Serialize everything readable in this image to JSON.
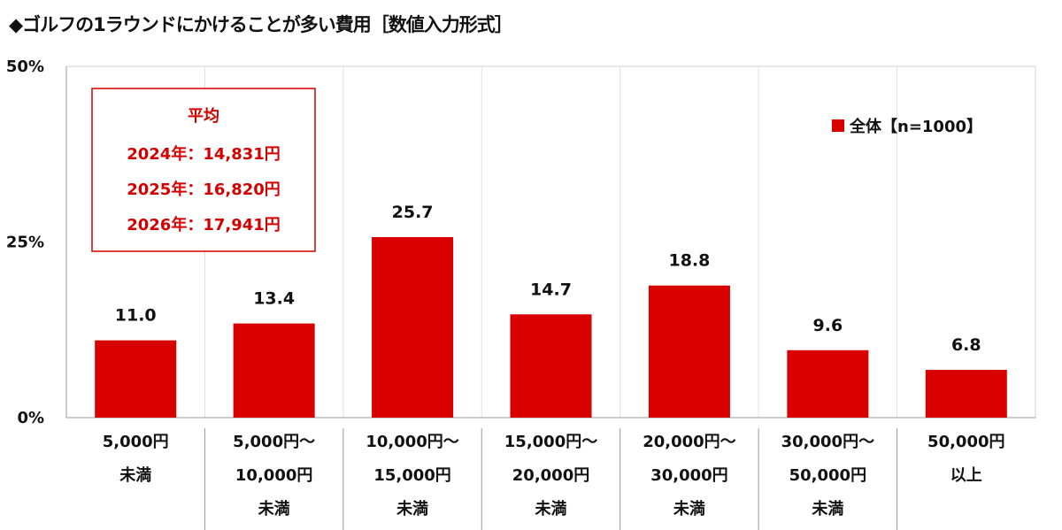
{
  "chart_data": {
    "type": "bar",
    "title": "◆ゴルフの1ラウンドにかけることが多い費用［数値入力形式］",
    "categories": [
      [
        "5,000円",
        "未満"
      ],
      [
        "5,000円～",
        "10,000円",
        "未満"
      ],
      [
        "10,000円～",
        "15,000円",
        "未満"
      ],
      [
        "15,000円～",
        "20,000円",
        "未満"
      ],
      [
        "20,000円～",
        "30,000円",
        "未満"
      ],
      [
        "30,000円～",
        "50,000円",
        "未満"
      ],
      [
        "50,000円",
        "以上"
      ]
    ],
    "series": [
      {
        "name": "全体【n=1000】",
        "values": [
          11.0,
          13.4,
          25.7,
          14.7,
          18.8,
          9.6,
          6.8
        ],
        "color": "#d90000"
      }
    ],
    "ylim": [
      0,
      50
    ],
    "yticks": [
      0,
      25,
      50
    ],
    "ytick_labels": [
      "0%",
      "25%",
      "50%"
    ],
    "legend_placement": "top-right",
    "annotation": {
      "heading": "平均",
      "lines": [
        "2024年：14,831円",
        "2025年：16,820円",
        "2026年：17,941円"
      ]
    }
  }
}
